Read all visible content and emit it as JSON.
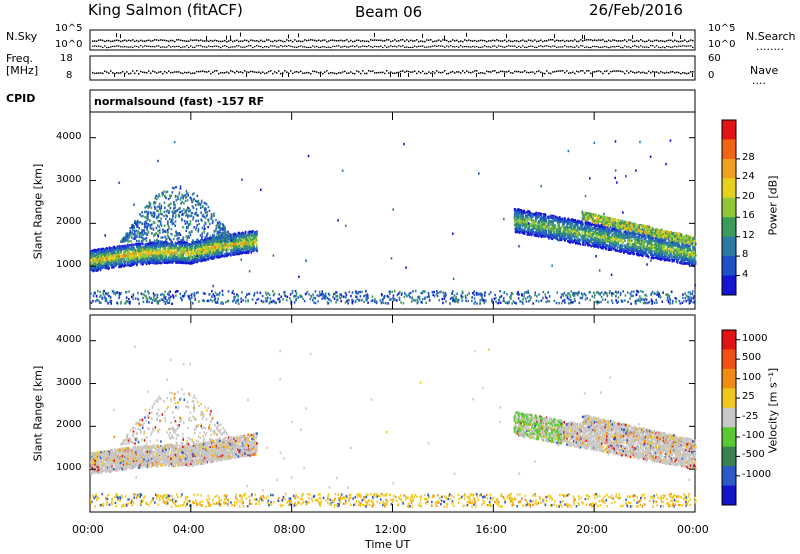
{
  "header": {
    "station": "King Salmon (fitACF)",
    "beam": "Beam 06",
    "date": "26/Feb/2016"
  },
  "strip_labels": {
    "nsky": "N.Sky",
    "nsearch": "N.Search",
    "nsearch_line": "........",
    "freq_l1": "Freq.",
    "freq_l2": "[MHz]",
    "nave": "Nave",
    "nave_line": "....",
    "cpid": "CPID",
    "mode": "normalsound (fast) -157 RF"
  },
  "strip_ticks": {
    "nsky_top": "10^5",
    "nsky_bot": "10^0",
    "nsearch_top": "10^5",
    "nsearch_bot": "10^0",
    "freq_top": "18",
    "freq_bot": "8",
    "nave_top": "60",
    "nave_bot": "0"
  },
  "chart_data": [
    {
      "type": "heatmap",
      "name": "power",
      "ylabel": "Slant Range [km]",
      "yticks": [
        1000,
        2000,
        3000,
        4000
      ],
      "ylim": [
        0,
        4600
      ],
      "xticks": [
        "00:00",
        "04:00",
        "08:00",
        "12:00",
        "16:00",
        "20:00",
        "00:00"
      ],
      "xlim_hours": [
        0,
        24
      ],
      "colorbar": {
        "label": "Power [dB]",
        "ticks": [
          "4",
          "8",
          "12",
          "16",
          "20",
          "24",
          "28"
        ],
        "colors": [
          "#1414d2",
          "#1e50c8",
          "#2b7aa5",
          "#3c9a5a",
          "#8fc93a",
          "#e6d21e",
          "#f0a01e",
          "#f06414",
          "#e01414"
        ]
      }
    },
    {
      "type": "heatmap",
      "name": "velocity",
      "ylabel": "Slant Range [km]",
      "yticks": [
        1000,
        2000,
        3000,
        4000
      ],
      "ylim": [
        0,
        4600
      ],
      "xticks": [
        "00:00",
        "04:00",
        "08:00",
        "12:00",
        "16:00",
        "20:00",
        "00:00"
      ],
      "xlim_hours": [
        0,
        24
      ],
      "xlabel": "Time UT",
      "colorbar": {
        "label": "Velocity [m s⁻¹]",
        "ticks": [
          "1000",
          "500",
          "100",
          "25",
          "-25",
          "-100",
          "-500",
          "-1000"
        ],
        "colors": [
          "#1414c8",
          "#2d5ac8",
          "#3c8250",
          "#5ac832",
          "#c8c8c8",
          "#f0c81e",
          "#f08c14",
          "#f05014",
          "#e01414"
        ]
      }
    }
  ]
}
